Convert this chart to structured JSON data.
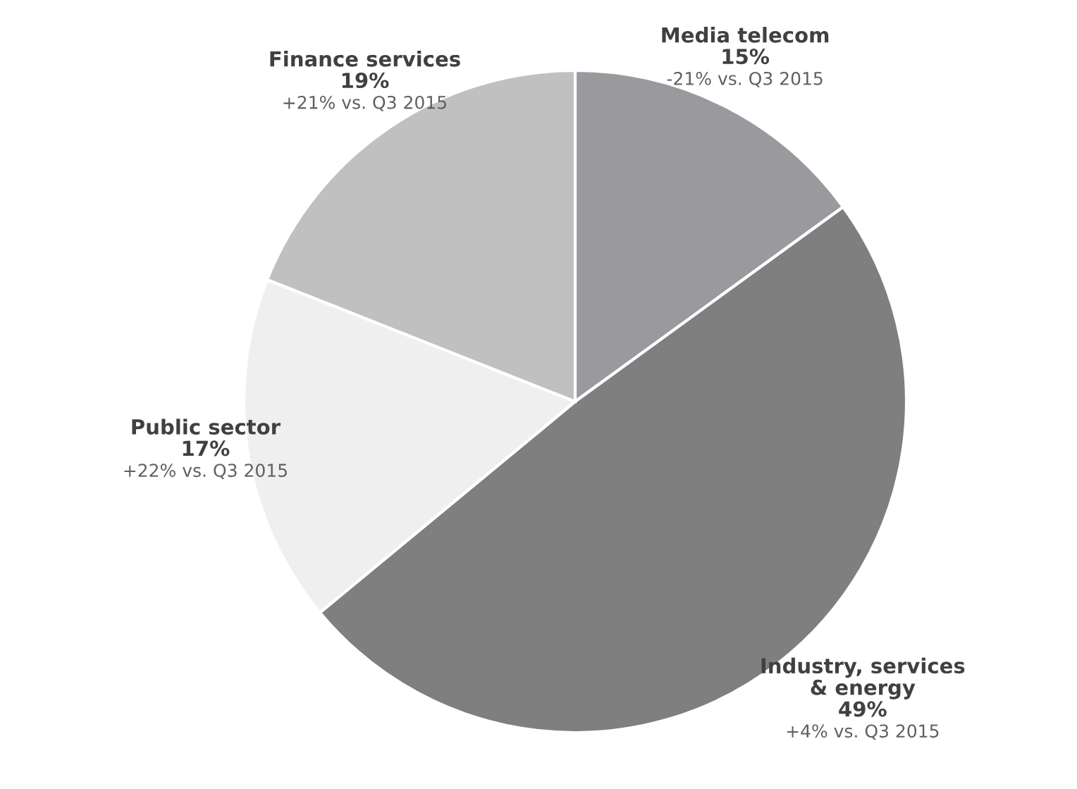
{
  "chart_data": {
    "type": "pie",
    "categories": [
      "Media telecom",
      "Industry, services\n& energy",
      "Public sector",
      "Finance services"
    ],
    "values": [
      15,
      49,
      17,
      19
    ],
    "value_labels": [
      "15%",
      "49%",
      "17%",
      "19%"
    ],
    "colors": [
      "#9a999e",
      "#7f7f7f",
      "#efefef",
      "#c0c0c0"
    ],
    "annotations": [
      "-21% vs. Q3 2015",
      "+4% vs. Q3 2015",
      "+22% vs. Q3 2015",
      "+21% vs. Q3 2015"
    ],
    "legend": false
  }
}
